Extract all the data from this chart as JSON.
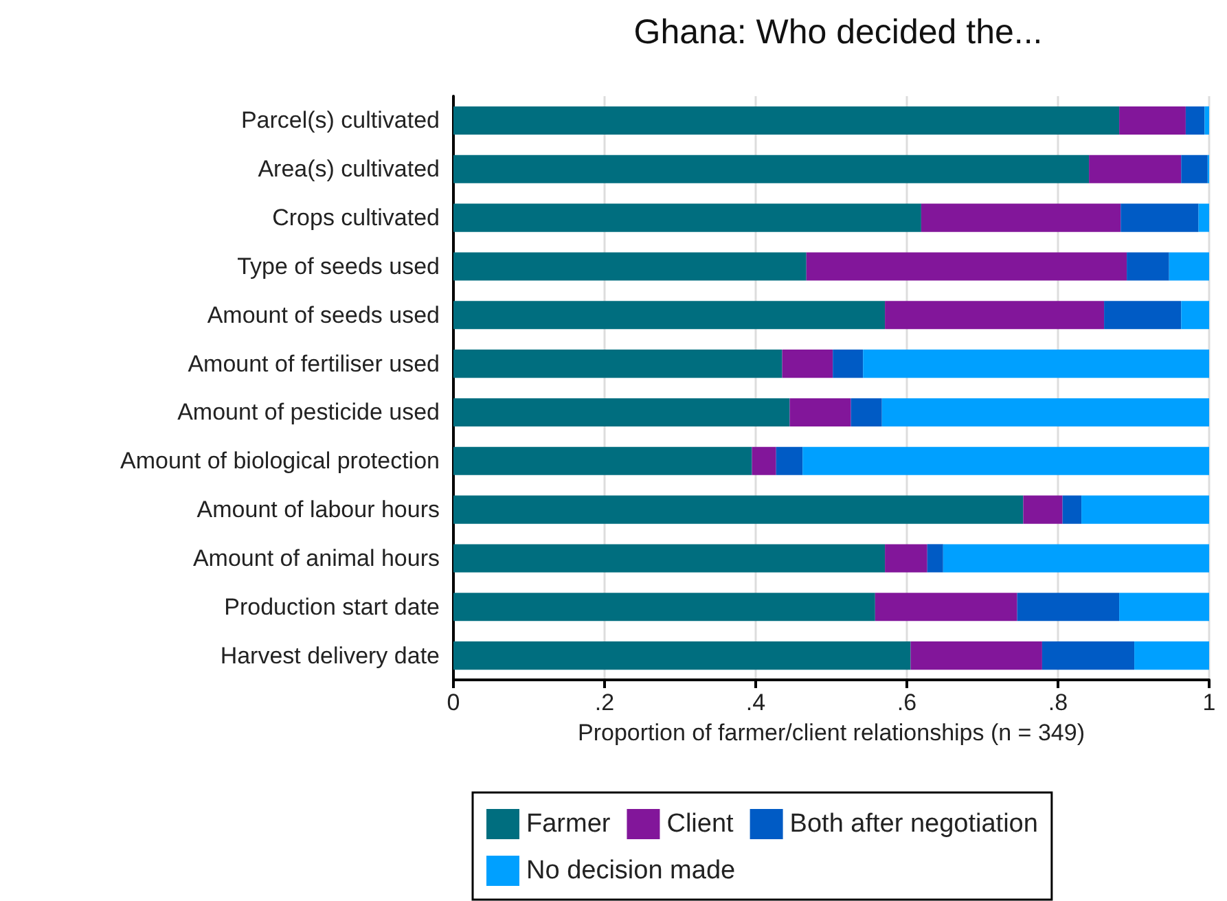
{
  "chart_data": {
    "type": "bar",
    "orientation": "horizontal",
    "stacked": true,
    "title": "Ghana: Who decided the...",
    "xlabel": "Proportion of farmer/client relationships (n = 349)",
    "categories": [
      "Parcel(s) cultivated",
      "Area(s) cultivated",
      "Crops cultivated",
      "Type of seeds used",
      "Amount of seeds used",
      "Amount of fertiliser used",
      "Amount of pesticide used",
      "Amount of biological protection",
      "Amount of labour hours",
      "Amount of animal hours",
      "Production start date",
      "Harvest delivery date"
    ],
    "series": [
      {
        "name": "Farmer",
        "color": "#006e7f",
        "values": [
          0.881,
          0.841,
          0.619,
          0.467,
          0.571,
          0.435,
          0.445,
          0.395,
          0.754,
          0.571,
          0.558,
          0.605
        ]
      },
      {
        "name": "Client",
        "color": "#82169a",
        "values": [
          0.088,
          0.122,
          0.264,
          0.424,
          0.29,
          0.067,
          0.081,
          0.032,
          0.052,
          0.056,
          0.188,
          0.174
        ]
      },
      {
        "name": "Both after negotiation",
        "color": "#005bc5",
        "values": [
          0.025,
          0.035,
          0.103,
          0.056,
          0.102,
          0.04,
          0.041,
          0.035,
          0.025,
          0.021,
          0.135,
          0.122
        ]
      },
      {
        "name": "No decision made",
        "color": "#00a0ff",
        "values": [
          0.006,
          0.002,
          0.014,
          0.053,
          0.037,
          0.458,
          0.433,
          0.538,
          0.169,
          0.352,
          0.119,
          0.099
        ]
      }
    ],
    "xlim": [
      0,
      1
    ],
    "xticks": [
      0,
      {
        "value": 0.2,
        "label": ".2"
      },
      {
        "value": 0.4,
        "label": ".4"
      },
      {
        "value": 0.6,
        "label": ".6"
      },
      {
        "value": 0.8,
        "label": ".8"
      },
      1
    ],
    "grid": "x",
    "legend": "bottom"
  }
}
